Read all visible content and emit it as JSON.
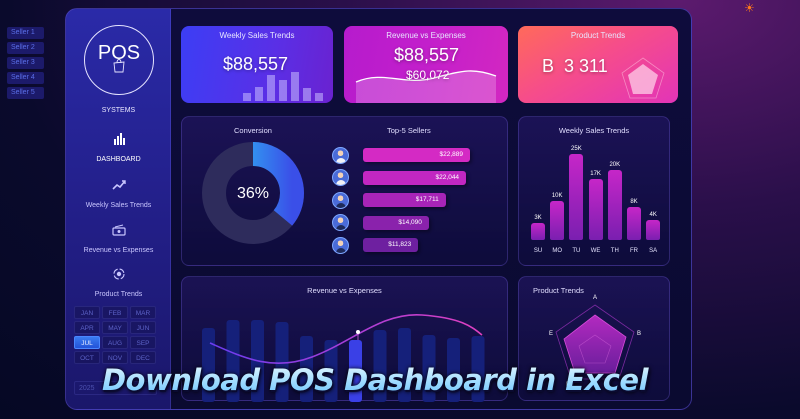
{
  "seller_filter": [
    "Seller 1",
    "Seller 2",
    "Seller 3",
    "Seller 4",
    "Seller 5"
  ],
  "theme_toggle_icon": "sun-icon",
  "colors": {
    "sidebar": "#2a2aa8",
    "kpi_blue": "#3c3ef5",
    "kpi_magenta": "#c31fcb",
    "kpi_coral": "#ff6a5a",
    "bar_magenta": "#c626c8",
    "donut_accent": "#2bc6f5",
    "month_active": "#3a7bf0",
    "banner_text": "#9fdcff"
  },
  "sidebar": {
    "logo_text": "POS",
    "logo_icon": "shopping-bag-icon",
    "logo_subtitle": "SYSTEMS",
    "nav": [
      {
        "label": "DASHBOARD",
        "icon": "bar-chart-icon",
        "active": true
      },
      {
        "label": "Weekly Sales Trends",
        "icon": "trend-up-icon"
      },
      {
        "label": "Revenue vs Expenses",
        "icon": "money-icon"
      },
      {
        "label": "Product Trends",
        "icon": "cycle-icon"
      }
    ],
    "months": [
      "JAN",
      "FEB",
      "MAR",
      "APR",
      "MAY",
      "JUN",
      "JUL",
      "AUG",
      "SEP",
      "OCT",
      "NOV",
      "DEC"
    ],
    "selected_month": "JUL",
    "year": "2025"
  },
  "kpis": {
    "weekly": {
      "title": "Weekly Sales Trends",
      "value": "$88,557"
    },
    "revenue": {
      "title": "Revenue vs Expenses",
      "value": "$88,557",
      "sub_value": "$60,072"
    },
    "product": {
      "title": "Product Trends",
      "value": "B  3 311"
    }
  },
  "conversion": {
    "title": "Conversion",
    "value": "36%",
    "percent": 36
  },
  "top_sellers": {
    "title": "Top-5 Sellers",
    "items": [
      {
        "value": "$22,889",
        "amount": 22889,
        "gender": "f"
      },
      {
        "value": "$22,044",
        "amount": 22044,
        "gender": "f"
      },
      {
        "value": "$17,711",
        "amount": 17711,
        "gender": "m"
      },
      {
        "value": "$14,090",
        "amount": 14090,
        "gender": "m"
      },
      {
        "value": "$11,823",
        "amount": 11823,
        "gender": "m"
      }
    ]
  },
  "weekly_chart": {
    "title": "Weekly Sales Trends",
    "days": [
      "SU",
      "MO",
      "TU",
      "WE",
      "TH",
      "FR",
      "SA"
    ],
    "labels": [
      "3K",
      "10K",
      "25K",
      "17K",
      "20K",
      "8K",
      "4K"
    ],
    "values": [
      3,
      10,
      25,
      17,
      20,
      8,
      4
    ]
  },
  "revenue_chart": {
    "title": "Revenue vs Expenses",
    "bars": [
      74,
      82,
      82,
      80,
      66,
      62,
      62,
      72,
      74,
      67,
      64,
      66
    ],
    "highlight_index": 6
  },
  "product_chart": {
    "title": "Product Trends",
    "axes": [
      "A",
      "B",
      "C",
      "D",
      "E"
    ]
  },
  "banner": {
    "text": "Download POS Dashboard in Excel"
  }
}
